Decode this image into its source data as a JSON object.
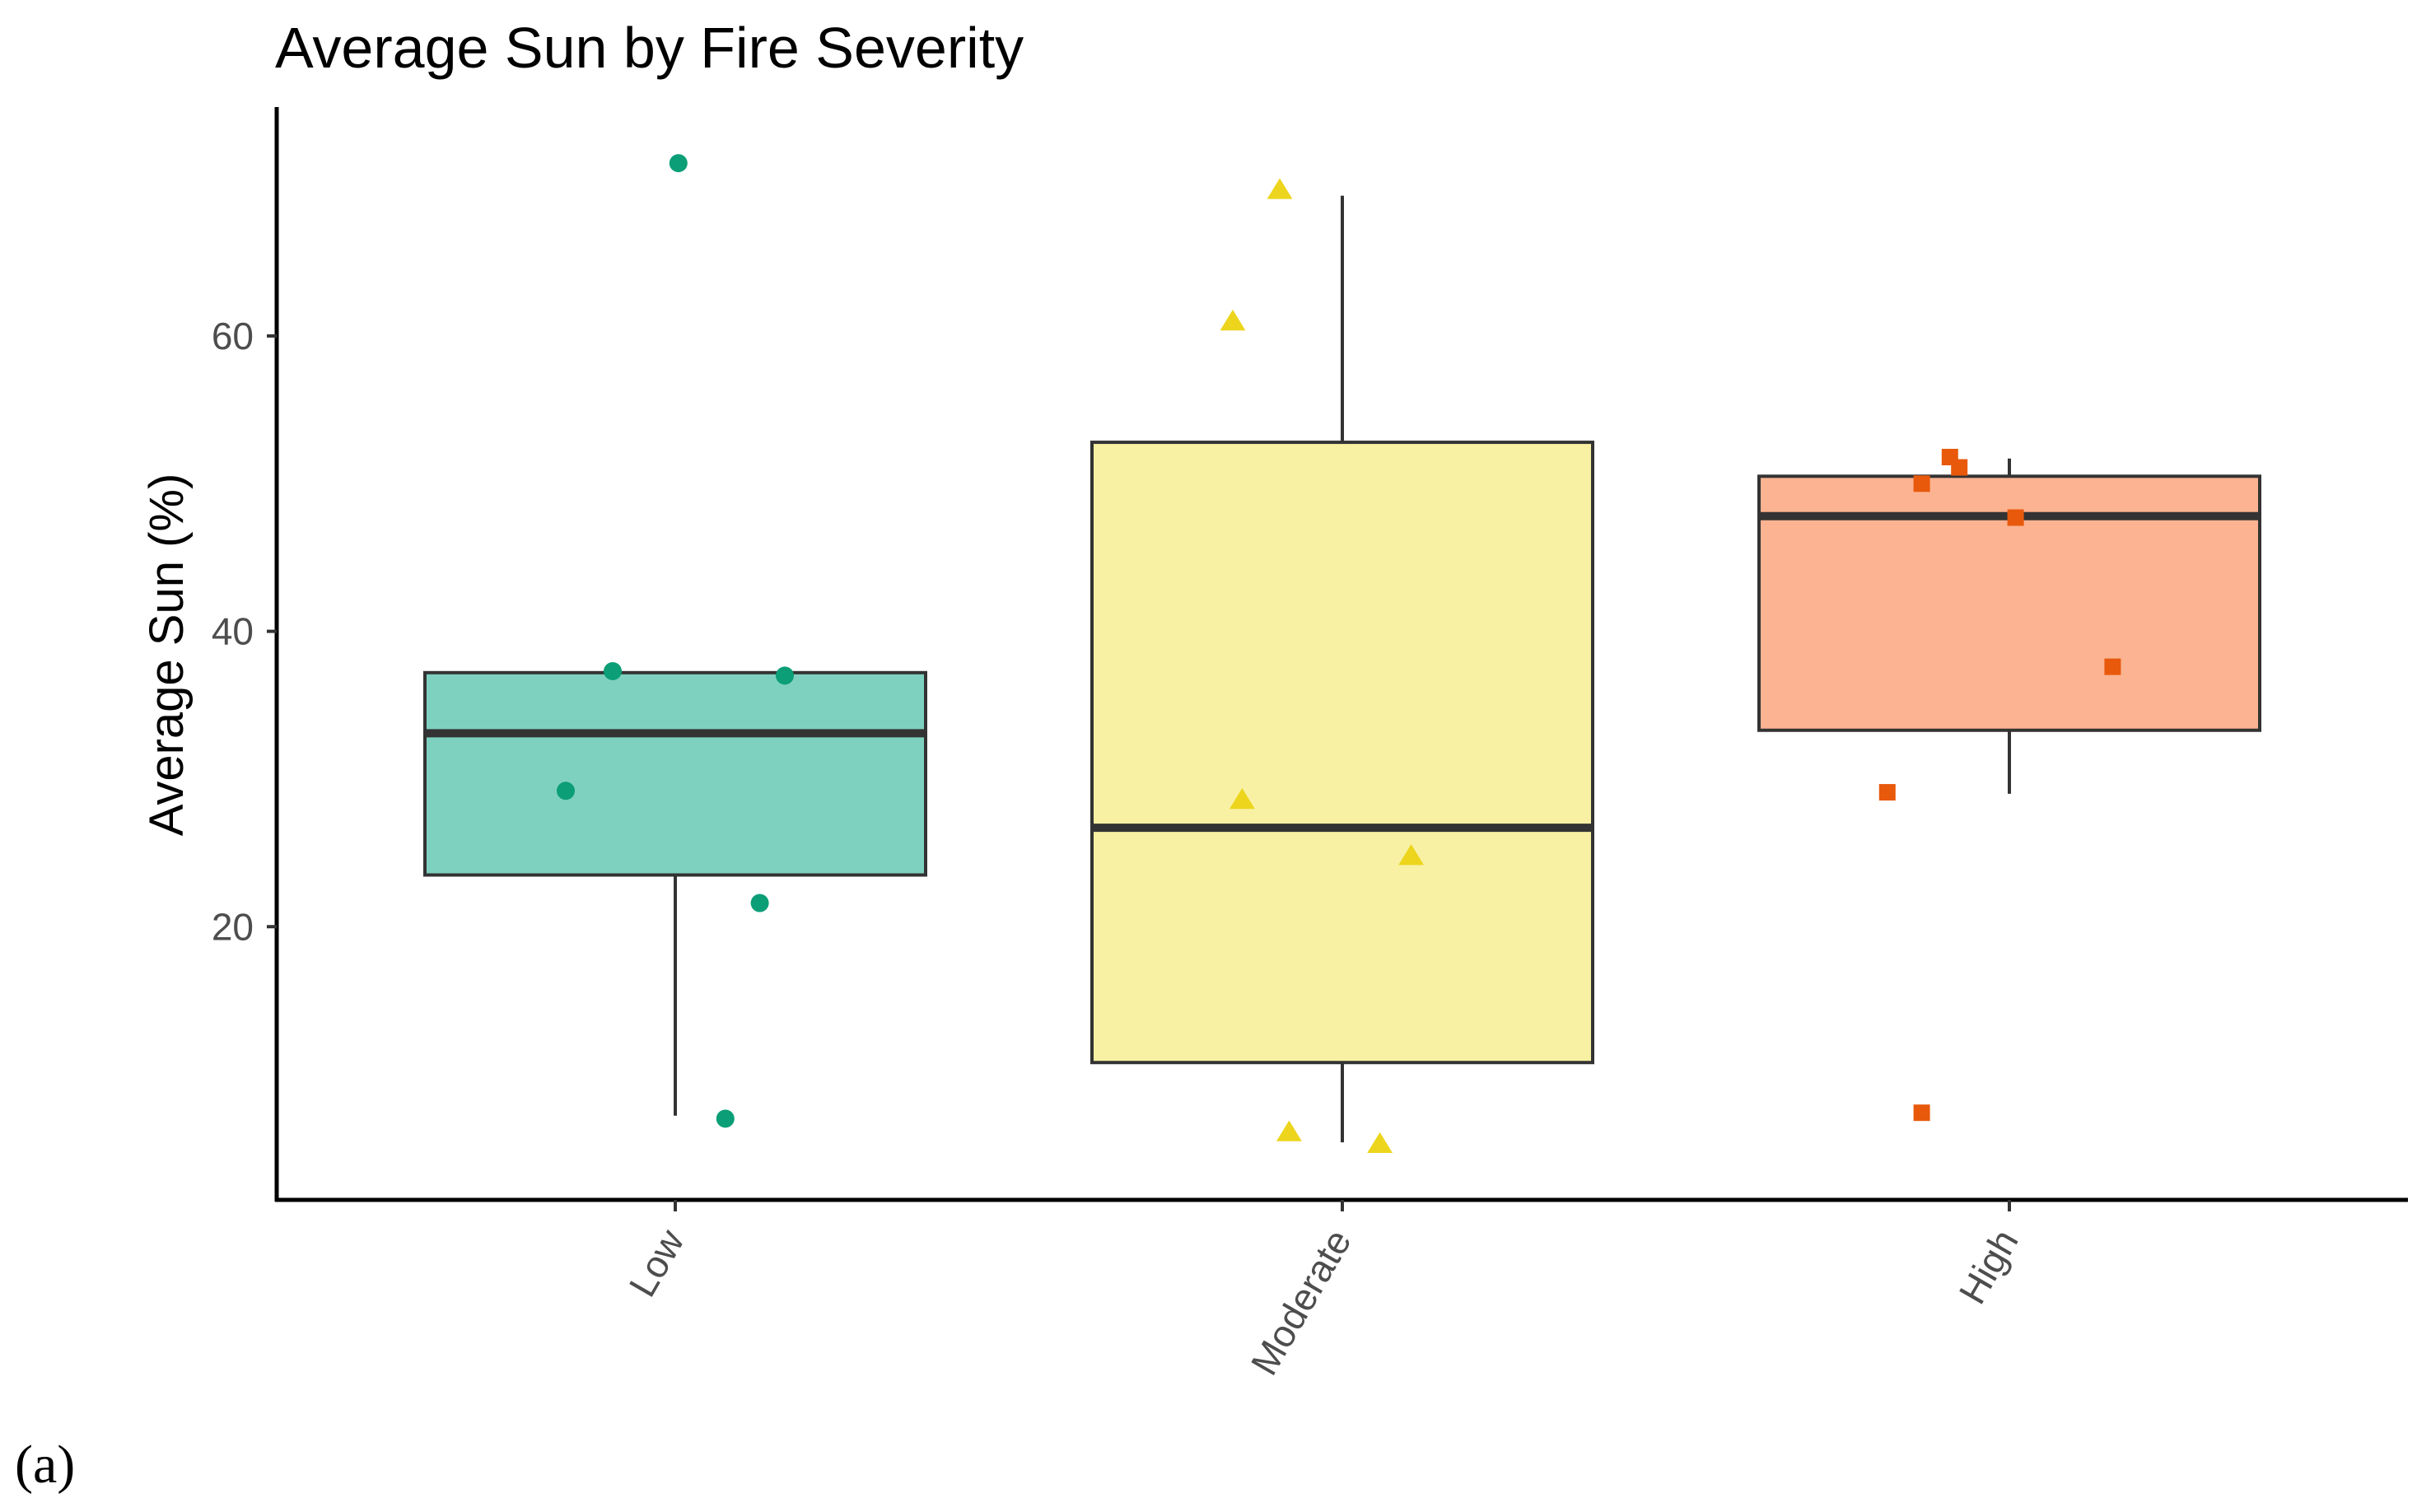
{
  "chart_data": {
    "type": "box",
    "title": "Average Sun by Fire Severity",
    "xlabel": "",
    "ylabel": "Average Sun (%)",
    "ylim": [
      1.5,
      75.5
    ],
    "yticks": [
      20,
      40,
      60
    ],
    "grid": false,
    "legend": "none",
    "categories": [
      "Low",
      "Moderate",
      "High"
    ],
    "boxes": [
      {
        "category": "Low",
        "whisker_low": 7.2,
        "q1": 23.5,
        "median": 33.1,
        "q3": 37.2,
        "whisker_high": 37.2,
        "fill": "#7fd1bf",
        "point_color": "#0b9e77",
        "point_shape": "circle"
      },
      {
        "category": "Moderate",
        "whisker_low": 5.4,
        "q1": 10.8,
        "median": 26.7,
        "q3": 52.8,
        "whisker_high": 69.5,
        "fill": "#f8f1a3",
        "point_color": "#ecd51c",
        "point_shape": "triangle"
      },
      {
        "category": "High",
        "whisker_low": 29.0,
        "q1": 33.3,
        "median": 47.8,
        "q3": 50.5,
        "whisker_high": 51.7,
        "fill": "#fcb391",
        "point_color": "#e8590c",
        "point_shape": "square"
      }
    ],
    "points": [
      {
        "category": "Low",
        "jitter": -0.35,
        "y": 29.2
      },
      {
        "category": "Low",
        "jitter": -0.2,
        "y": 37.3
      },
      {
        "category": "Low",
        "jitter": 0.01,
        "y": 71.7
      },
      {
        "category": "Low",
        "jitter": 0.16,
        "y": 7.0
      },
      {
        "category": "Low",
        "jitter": 0.27,
        "y": 21.6
      },
      {
        "category": "Low",
        "jitter": 0.35,
        "y": 37.0
      },
      {
        "category": "Moderate",
        "jitter": -0.35,
        "y": 61.0
      },
      {
        "category": "Moderate",
        "jitter": -0.32,
        "y": 28.6
      },
      {
        "category": "Moderate",
        "jitter": -0.2,
        "y": 69.9
      },
      {
        "category": "Moderate",
        "jitter": -0.17,
        "y": 6.1
      },
      {
        "category": "Moderate",
        "jitter": 0.12,
        "y": 5.3
      },
      {
        "category": "Moderate",
        "jitter": 0.22,
        "y": 24.8
      },
      {
        "category": "High",
        "jitter": -0.39,
        "y": 29.1
      },
      {
        "category": "High",
        "jitter": -0.28,
        "y": 50.0
      },
      {
        "category": "High",
        "jitter": -0.28,
        "y": 7.4
      },
      {
        "category": "High",
        "jitter": -0.19,
        "y": 51.8
      },
      {
        "category": "High",
        "jitter": -0.16,
        "y": 51.1
      },
      {
        "category": "High",
        "jitter": 0.02,
        "y": 47.7
      },
      {
        "category": "High",
        "jitter": 0.33,
        "y": 37.6
      }
    ],
    "panel_label": "(a)"
  }
}
